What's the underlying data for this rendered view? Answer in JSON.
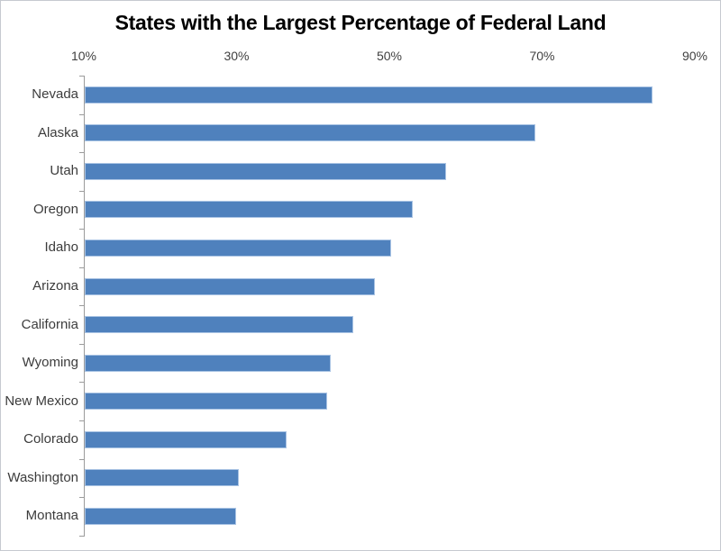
{
  "chart_data": {
    "type": "bar",
    "orientation": "horizontal",
    "title": "States with the Largest Percentage of Federal Land",
    "categories": [
      "Nevada",
      "Alaska",
      "Utah",
      "Oregon",
      "Idaho",
      "Arizona",
      "California",
      "Wyoming",
      "New Mexico",
      "Colorado",
      "Washington",
      "Montana"
    ],
    "values": [
      84.5,
      69.1,
      57.4,
      53.1,
      50.2,
      48.1,
      45.3,
      42.3,
      41.8,
      36.6,
      30.3,
      29.9
    ],
    "value_unit": "%",
    "xlabel": "",
    "ylabel": "",
    "x_axis": {
      "position": "top",
      "min": 10,
      "max": 90,
      "tick_labels": [
        "10%",
        "30%",
        "50%",
        "70%",
        "90%"
      ],
      "tick_values": [
        10,
        30,
        50,
        70,
        90
      ]
    },
    "grid": false,
    "legend": false,
    "colors": {
      "bar_fill": "#4f81bd",
      "bar_border": "#aac4e4",
      "axis_line": "#9b9b9b",
      "tick_label_text": "#3f3f3f",
      "category_label_text": "#3c3c3c",
      "title_text": "#000000",
      "chart_border": "#c6cad0",
      "background": "#ffffff"
    }
  }
}
